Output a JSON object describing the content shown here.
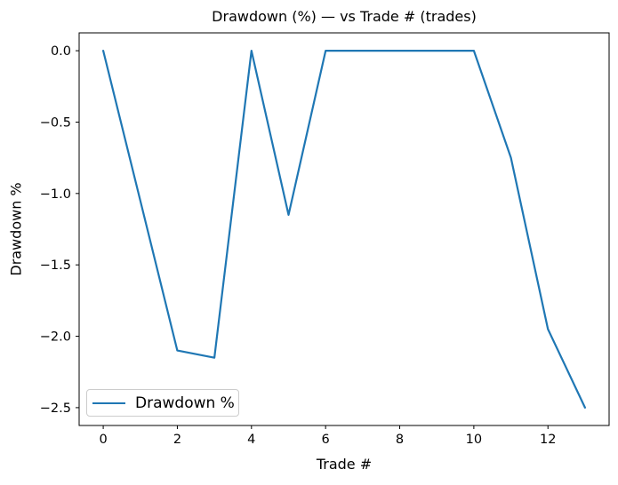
{
  "chart_data": {
    "type": "line",
    "title": "Drawdown (%) — vs Trade # (trades)",
    "xlabel": "Trade #",
    "ylabel": "Drawdown %",
    "x": [
      0,
      1,
      2,
      3,
      4,
      5,
      6,
      7,
      8,
      9,
      10,
      11,
      12,
      13
    ],
    "series": [
      {
        "name": "Drawdown %",
        "values": [
          0.0,
          -1.05,
          -2.1,
          -2.15,
          0.0,
          -1.15,
          0.0,
          0.0,
          0.0,
          0.0,
          0.0,
          -0.75,
          -1.95,
          -2.5
        ],
        "color": "#1f77b4",
        "line_width": 2.2
      }
    ],
    "x_ticks": [
      0,
      2,
      4,
      6,
      8,
      10,
      12
    ],
    "y_ticks": [
      0.0,
      -0.5,
      -1.0,
      -1.5,
      -2.0,
      -2.5
    ],
    "xlim": [
      -0.65,
      13.65
    ],
    "ylim": [
      -2.625,
      0.125
    ],
    "grid": false,
    "legend": {
      "entries": [
        "Drawdown %"
      ],
      "position": "lower-left"
    },
    "axis_color": "#000000",
    "background_color": "#ffffff"
  }
}
